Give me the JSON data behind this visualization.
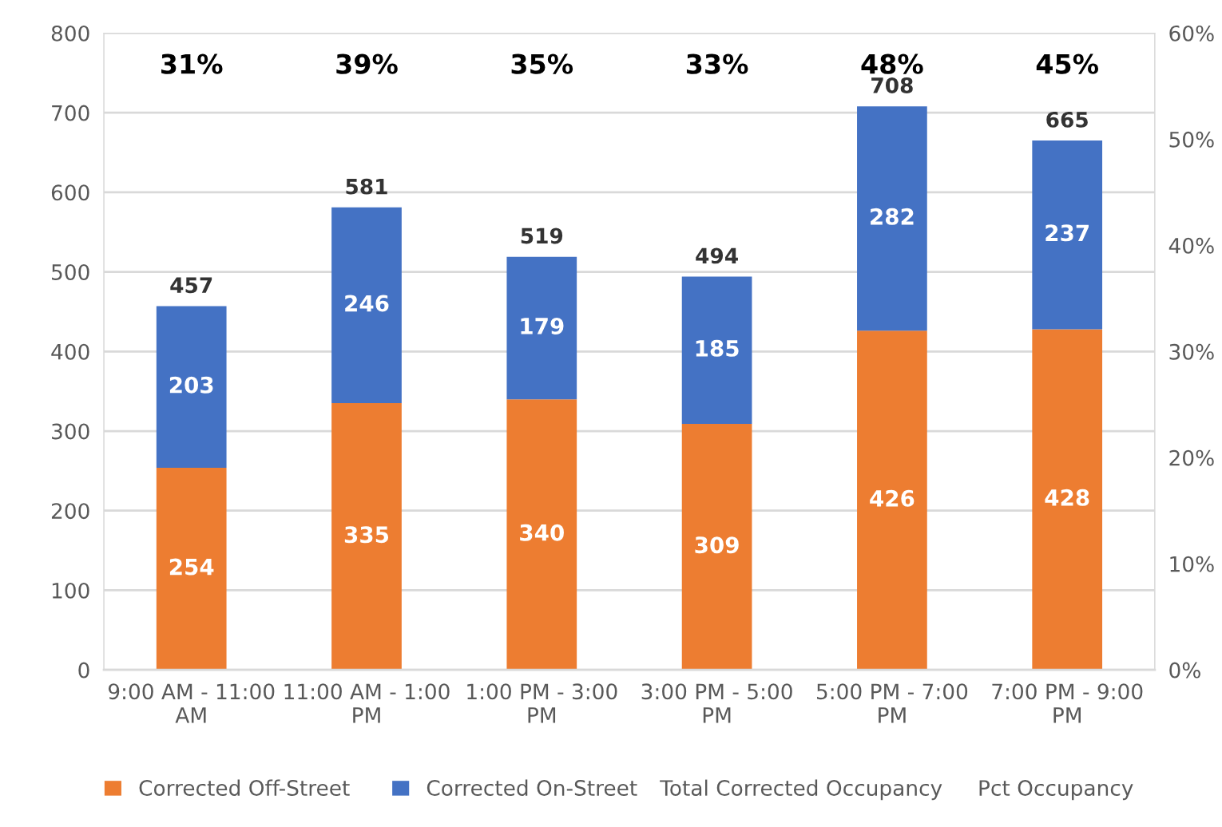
{
  "chart_data": {
    "type": "bar",
    "stacked": true,
    "categories": [
      "9:00 AM - 11:00 AM",
      "11:00 AM - 1:00 PM",
      "1:00 PM - 3:00 PM",
      "3:00 PM - 5:00 PM",
      "5:00 PM - 7:00 PM",
      "7:00 PM - 9:00 PM"
    ],
    "series": [
      {
        "name": "Corrected Off-Street",
        "color": "#ed7d31",
        "values": [
          254,
          335,
          340,
          309,
          426,
          428
        ]
      },
      {
        "name": "Corrected On-Street",
        "color": "#4472c4",
        "values": [
          203,
          246,
          179,
          185,
          282,
          237
        ]
      }
    ],
    "data_labels": true,
    "totals": [
      "457",
      "581",
      "519",
      "494",
      "708",
      "665"
    ],
    "annotations": [
      "31%",
      "39%",
      "35%",
      "33%",
      "48%",
      "45%",
      "Total Corrected Occupancy",
      "Pct Occupancy"
    ],
    "ylim": [
      0,
      800
    ],
    "yticks": [
      0,
      100,
      200,
      300,
      400,
      500,
      600,
      700,
      800
    ],
    "y2lim": [
      0,
      60
    ],
    "y2ticks": [
      {
        "value": 0,
        "label": "0%"
      },
      {
        "value": 10,
        "label": "10%"
      },
      {
        "value": 20,
        "label": "20%"
      },
      {
        "value": 30,
        "label": "30%"
      },
      {
        "value": 40,
        "label": "40%"
      },
      {
        "value": 50,
        "label": "50%"
      },
      {
        "value": 60,
        "label": "60%"
      }
    ],
    "grid": "y",
    "legend": "bottom"
  }
}
